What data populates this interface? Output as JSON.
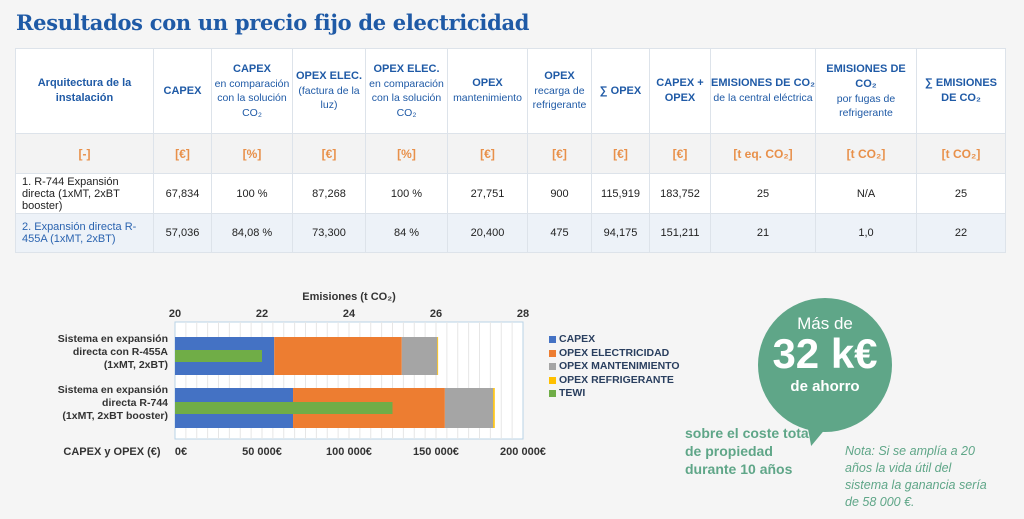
{
  "title": "Resultados con un precio fijo de electricidad",
  "table": {
    "headers": [
      {
        "main": "Arquitectura de la instalación",
        "sub": ""
      },
      {
        "main": "CAPEX",
        "sub": ""
      },
      {
        "main": "CAPEX",
        "sub": "en comparación con la solución CO₂"
      },
      {
        "main": "OPEX ELEC.",
        "sub": "(factura de la luz)"
      },
      {
        "main": "OPEX ELEC.",
        "sub": "en comparación con la solución CO₂"
      },
      {
        "main": "OPEX",
        "sub": "mantenimiento"
      },
      {
        "main": "OPEX",
        "sub": "recarga de refrigerante"
      },
      {
        "main": "∑ OPEX",
        "sub": ""
      },
      {
        "main": "CAPEX + OPEX",
        "sub": ""
      },
      {
        "main": "EMISIONES DE CO₂",
        "sub": "de la central eléctrica"
      },
      {
        "main": "EMISIONES DE CO₂",
        "sub": "por fugas de refrigerante"
      },
      {
        "main": "∑ EMISIONES DE CO₂",
        "sub": ""
      }
    ],
    "units": [
      "[-]",
      "[€]",
      "[%]",
      "[€]",
      "[%]",
      "[€]",
      "[€]",
      "[€]",
      "[€]",
      "[t eq. CO₂]",
      "[t CO₂]",
      "[t CO₂]"
    ],
    "rows": [
      [
        "1. R-744 Expansión directa (1xMT, 2xBT booster)",
        "67,834",
        "100 %",
        "87,268",
        "100 %",
        "27,751",
        "900",
        "115,919",
        "183,752",
        "25",
        "N/A",
        "25"
      ],
      [
        "2. Expansión directa R-455A (1xMT, 2xBT)",
        "57,036",
        "84,08 %",
        "73,300",
        "84 %",
        "20,400",
        "475",
        "94,175",
        "151,211",
        "21",
        "1,0",
        "22"
      ]
    ]
  },
  "chart_data": {
    "type": "bar",
    "orientation": "horizontal",
    "stacked": true,
    "top_axis_label": "Emisiones (t CO₂)",
    "top_axis_range": [
      20,
      28
    ],
    "top_ticks": [
      "20",
      "22",
      "24",
      "26",
      "28"
    ],
    "bottom_axis_label": "CAPEX y OPEX (€)",
    "bottom_axis_range": [
      0,
      200000
    ],
    "bottom_ticks": [
      "0€",
      "50 000€",
      "100 000€",
      "150 000€",
      "200 000€"
    ],
    "grid": true,
    "legend_position": "right",
    "categories": [
      "Sistema en expansión directa con R-455A (1xMT, 2xBT)",
      "Sistema en expansión directa R-744 (1xMT, 2xBT booster)"
    ],
    "series": [
      {
        "name": "CAPEX",
        "color": "#4472c4",
        "values": [
          57036,
          67834
        ]
      },
      {
        "name": "OPEX ELECTRICIDAD",
        "color": "#ed7d31",
        "values": [
          73300,
          87268
        ]
      },
      {
        "name": "OPEX MANTENIMIENTO",
        "color": "#a5a5a5",
        "values": [
          20400,
          27751
        ]
      },
      {
        "name": "OPEX REFRIGERANTE",
        "color": "#ffc000",
        "values": [
          475,
          900
        ]
      },
      {
        "name": "TEWI",
        "color": "#70ad47",
        "axis": "top",
        "values": [
          22,
          25
        ]
      }
    ]
  },
  "callout": {
    "line1": "Más de",
    "line2": "32 k€",
    "line3": "de ahorro",
    "color": "#5fa688"
  },
  "sobre": "sobre el coste total de propiedad durante 10 años",
  "nota": "Nota: Si se amplía a 20 años la vida útil del sistema la ganancia sería de 58 000 €."
}
